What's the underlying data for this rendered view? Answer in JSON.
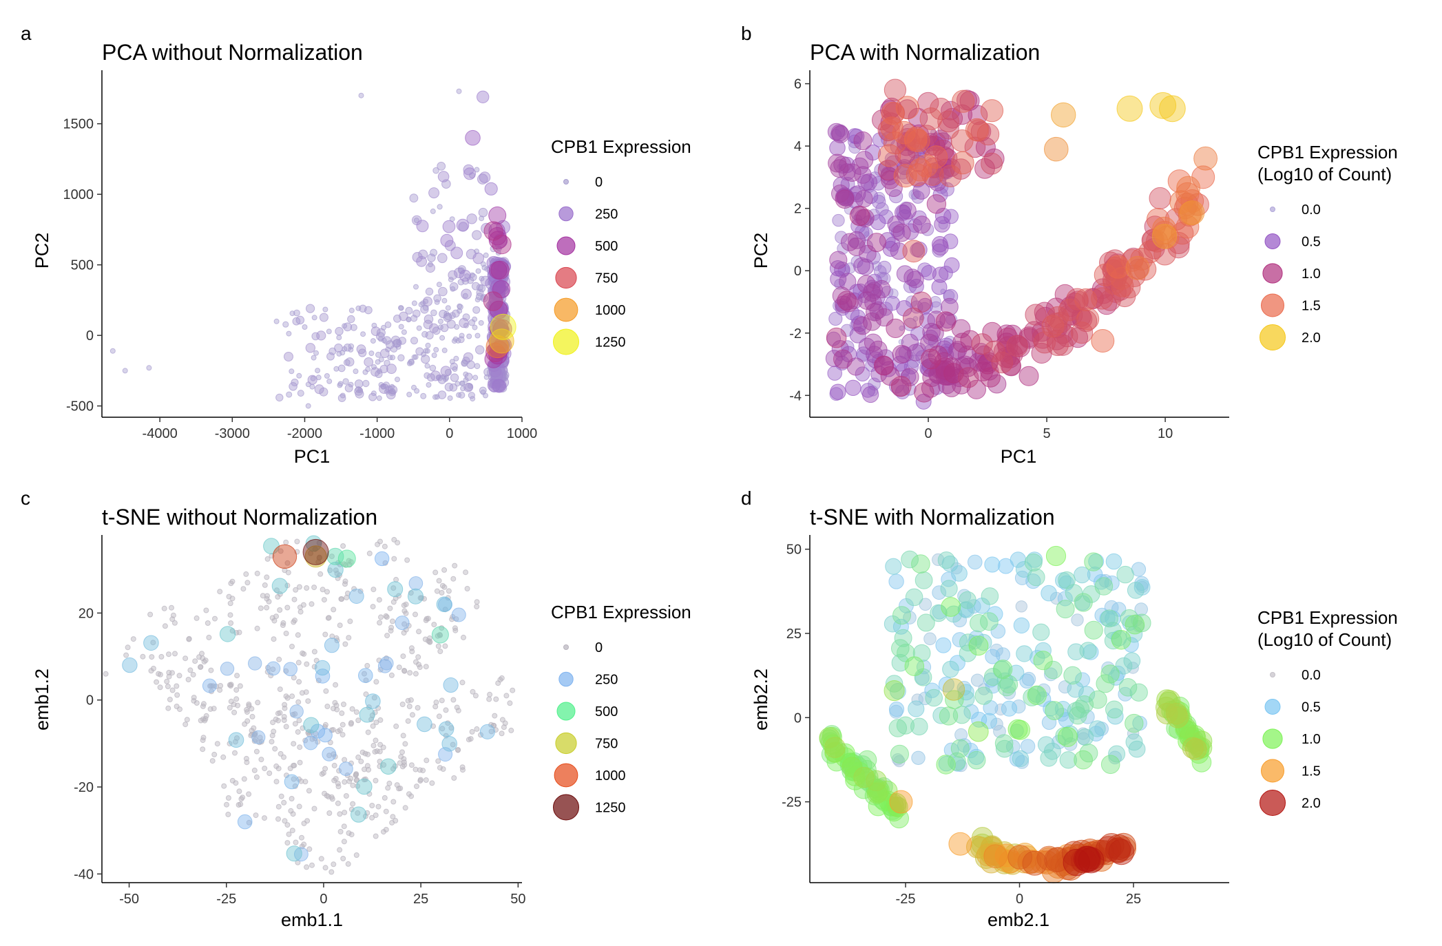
{
  "panels": [
    {
      "letter": "a",
      "title": "PCA without Normalization",
      "xlabel": "PC1",
      "ylabel": "PC2",
      "xlim": [
        -4800,
        1000
      ],
      "ylim": [
        -580,
        1850
      ],
      "xticks": [
        -4000,
        -3000,
        -2000,
        -1000,
        0,
        1000
      ],
      "xtick_labels": [
        "-4000",
        "-3000",
        "-2000",
        "-1000",
        "0",
        "1000"
      ],
      "yticks": [
        -500,
        0,
        500,
        1000,
        1500
      ],
      "ytick_labels": [
        "-500",
        "0",
        "500",
        "1000",
        "1500"
      ],
      "legend": {
        "title_lines": [
          "CPB1 Expression"
        ],
        "labels": [
          "0",
          "250",
          "500",
          "750",
          "1000",
          "1250"
        ],
        "colors": [
          "#a99fd0",
          "#9a6fcc",
          "#a3309f",
          "#d9454f",
          "#f59a23",
          "#f0f11a"
        ]
      }
    },
    {
      "letter": "b",
      "title": "PCA with Normalization",
      "xlabel": "PC1",
      "ylabel": "PC2",
      "xlim": [
        -5,
        12.7
      ],
      "ylim": [
        -4.7,
        6.3
      ],
      "xticks": [
        0,
        5,
        10
      ],
      "xtick_labels": [
        "0",
        "5",
        "10"
      ],
      "yticks": [
        -4,
        -2,
        0,
        2,
        4,
        6
      ],
      "ytick_labels": [
        "-4",
        "-2",
        "0",
        "2",
        "4",
        "6"
      ],
      "legend": {
        "title_lines": [
          "CPB1 Expression",
          "(Log10 of Count)"
        ],
        "labels": [
          "0.0",
          "0.5",
          "1.0",
          "1.5",
          "2.0"
        ],
        "colors": [
          "#b0a6d9",
          "#9456c4",
          "#b1327f",
          "#ea6a4c",
          "#f5c71a"
        ]
      }
    },
    {
      "letter": "c",
      "title": "t-SNE without Normalization",
      "xlabel": "emb1.1",
      "ylabel": "emb1.2",
      "xlim": [
        -57,
        51
      ],
      "ylim": [
        -42,
        37
      ],
      "xticks": [
        -50,
        -25,
        0,
        25,
        50
      ],
      "xtick_labels": [
        "-50",
        "-25",
        "0",
        "25",
        "50"
      ],
      "yticks": [
        -40,
        -20,
        0,
        20
      ],
      "ytick_labels": [
        "-40",
        "-20",
        "0",
        "20"
      ],
      "legend": {
        "title_lines": [
          "CPB1 Expression"
        ],
        "labels": [
          "0",
          "250",
          "500",
          "750",
          "1000",
          "1250"
        ],
        "colors": [
          "#b8b3bd",
          "#7fb3ef",
          "#4ef08a",
          "#c7cd2a",
          "#e54a18",
          "#6b0a0a"
        ]
      }
    },
    {
      "letter": "d",
      "title": "t-SNE with Normalization",
      "xlabel": "emb2.1",
      "ylabel": "emb2.2",
      "xlim": [
        -46,
        46
      ],
      "ylim": [
        -49,
        53
      ],
      "xticks": [
        -25,
        0,
        25
      ],
      "xtick_labels": [
        "-25",
        "0",
        "25"
      ],
      "yticks": [
        -25,
        0,
        25,
        50
      ],
      "ytick_labels": [
        "-25",
        "0",
        "25",
        "50"
      ],
      "legend": {
        "title_lines": [
          "CPB1 Expression",
          "(Log10 of Count)"
        ],
        "labels": [
          "0.0",
          "0.5",
          "1.0",
          "1.5",
          "2.0"
        ],
        "colors": [
          "#c4c0c8",
          "#7cc6f2",
          "#7ef257",
          "#f89c2a",
          "#b3140f"
        ]
      }
    }
  ],
  "chart_data": [
    {
      "type": "scatter",
      "title": "PCA without Normalization",
      "xlabel": "PC1",
      "ylabel": "PC2",
      "xlim": [
        -4800,
        1000
      ],
      "ylim": [
        -580,
        1850
      ],
      "size_legend": [
        0,
        250,
        500,
        750,
        1000,
        1250
      ],
      "notable_points": [
        {
          "x": -4650,
          "y": -110,
          "expr": 0
        },
        {
          "x": -4480,
          "y": -250,
          "expr": 0
        },
        {
          "x": -4150,
          "y": -230,
          "expr": 0
        },
        {
          "x": -1220,
          "y": 1700,
          "expr": 0
        },
        {
          "x": 130,
          "y": 1730,
          "expr": 0
        },
        {
          "x": 460,
          "y": 1690,
          "expr": 150
        },
        {
          "x": 320,
          "y": 1400,
          "expr": 300
        },
        {
          "x": 660,
          "y": 850,
          "expr": 450
        },
        {
          "x": 740,
          "y": 60,
          "expr": 1250
        },
        {
          "x": 720,
          "y": -40,
          "expr": 1100
        },
        {
          "x": 660,
          "y": -80,
          "expr": 900
        },
        {
          "x": -1950,
          "y": -500,
          "expr": 0
        }
      ]
    },
    {
      "type": "scatter",
      "title": "PCA with Normalization",
      "xlabel": "PC1",
      "ylabel": "PC2",
      "xlim": [
        -5,
        12.7
      ],
      "ylim": [
        -4.7,
        6.3
      ],
      "size_legend": [
        0.0,
        0.5,
        1.0,
        1.5,
        2.0
      ],
      "notable_points": [
        {
          "x": -1.4,
          "y": 5.8,
          "expr": 1.3
        },
        {
          "x": 9.9,
          "y": 5.3,
          "expr": 2.1
        },
        {
          "x": 10.3,
          "y": 5.2,
          "expr": 2.1
        },
        {
          "x": 8.5,
          "y": 5.2,
          "expr": 2.0
        },
        {
          "x": 5.7,
          "y": 5.0,
          "expr": 1.8
        },
        {
          "x": 5.4,
          "y": 3.9,
          "expr": 1.7
        },
        {
          "x": 11.7,
          "y": 3.6,
          "expr": 1.6
        },
        {
          "x": 11.6,
          "y": 3.0,
          "expr": 1.5
        },
        {
          "x": -0.2,
          "y": -4.2,
          "expr": 0.5
        },
        {
          "x": 2.5,
          "y": -3.0,
          "expr": 1.0
        }
      ]
    },
    {
      "type": "scatter",
      "title": "t-SNE without Normalization",
      "xlabel": "emb1.1",
      "ylabel": "emb1.2",
      "xlim": [
        -57,
        51
      ],
      "ylim": [
        -42,
        37
      ],
      "size_legend": [
        0,
        250,
        500,
        750,
        1000,
        1250
      ],
      "notable_points": [
        {
          "x": -10,
          "y": 33,
          "expr": 1050
        },
        {
          "x": -2,
          "y": 34,
          "expr": 1250
        },
        {
          "x": -2,
          "y": 33,
          "expr": 800
        },
        {
          "x": 3,
          "y": 33,
          "expr": 400
        },
        {
          "x": 6,
          "y": 32.5,
          "expr": 450
        },
        {
          "x": 15,
          "y": 32.5,
          "expr": 250
        },
        {
          "x": 31,
          "y": 22,
          "expr": 300
        },
        {
          "x": 30,
          "y": 15,
          "expr": 400
        },
        {
          "x": -56,
          "y": 6,
          "expr": 0
        },
        {
          "x": 47,
          "y": 1,
          "expr": 0
        },
        {
          "x": -3,
          "y": -38,
          "expr": 0
        }
      ]
    },
    {
      "type": "scatter",
      "title": "t-SNE with Normalization",
      "xlabel": "emb2.1",
      "ylabel": "emb2.2",
      "xlim": [
        -46,
        46
      ],
      "ylim": [
        -49,
        53
      ],
      "size_legend": [
        0.0,
        0.5,
        1.0,
        1.5,
        2.0
      ],
      "notable_points": [
        {
          "x": 12.5,
          "y": -43,
          "expr": 2.2
        },
        {
          "x": 15,
          "y": -42,
          "expr": 2.0
        },
        {
          "x": 18,
          "y": -40,
          "expr": 1.8
        },
        {
          "x": 6,
          "y": -43,
          "expr": 1.6
        },
        {
          "x": -13,
          "y": -37.5,
          "expr": 1.5
        },
        {
          "x": -26,
          "y": -25,
          "expr": 1.5
        },
        {
          "x": -41,
          "y": -8,
          "expr": 1.0
        },
        {
          "x": 40,
          "y": -7,
          "expr": 1.1
        },
        {
          "x": 8,
          "y": 48,
          "expr": 1.0
        },
        {
          "x": -3,
          "y": 45,
          "expr": 0.5
        },
        {
          "x": -26,
          "y": 27,
          "expr": 0.5
        }
      ]
    }
  ]
}
